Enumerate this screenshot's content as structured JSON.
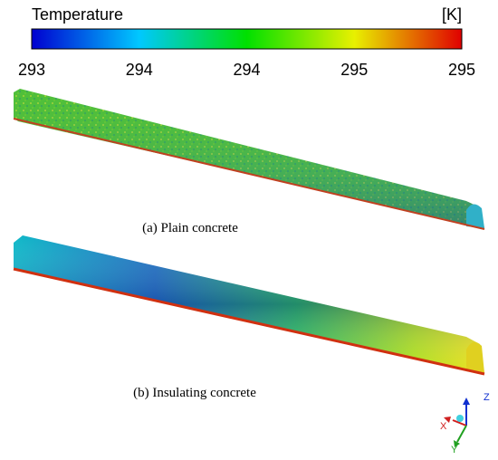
{
  "colorbar": {
    "title": "Temperature",
    "unit": "[K]",
    "tick_labels": [
      "293",
      "294",
      "294",
      "295",
      "295"
    ]
  },
  "panels": [
    {
      "caption": "(a) Plain concrete"
    },
    {
      "caption": "(b) Insulating concrete"
    }
  ],
  "axes_triad": {
    "z": "Z",
    "x": "X",
    "y": "Y"
  }
}
